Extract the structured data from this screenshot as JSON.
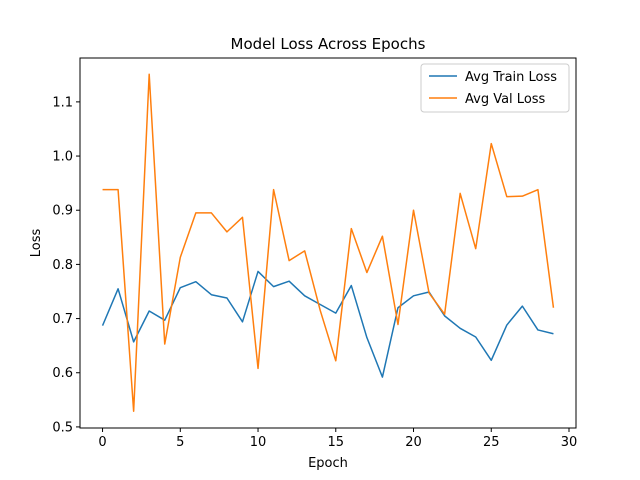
{
  "chart_data": {
    "type": "line",
    "title": "Model Loss Across Epochs",
    "xlabel": "Epoch",
    "ylabel": "Loss",
    "xlim": [
      -1.45,
      30.45
    ],
    "ylim": [
      0.498,
      1.181
    ],
    "xticks": [
      0,
      5,
      10,
      15,
      20,
      25,
      30
    ],
    "yticks": [
      0.5,
      0.6,
      0.7,
      0.8,
      0.9,
      1.0,
      1.1
    ],
    "ytick_labels": [
      "0.5",
      "0.6",
      "0.7",
      "0.8",
      "0.9",
      "1.0",
      "1.1"
    ],
    "grid": false,
    "legend_position": "top-right",
    "x": [
      0,
      1,
      2,
      3,
      4,
      5,
      6,
      7,
      8,
      9,
      10,
      11,
      12,
      13,
      14,
      15,
      16,
      17,
      18,
      19,
      20,
      21,
      22,
      23,
      24,
      25,
      26,
      27,
      28,
      29
    ],
    "series": [
      {
        "name": "Avg Train Loss",
        "color": "#1f77b4",
        "values": [
          0.687,
          0.755,
          0.657,
          0.714,
          0.697,
          0.757,
          0.768,
          0.744,
          0.738,
          0.694,
          0.787,
          0.759,
          0.769,
          0.742,
          0.726,
          0.71,
          0.761,
          0.665,
          0.592,
          0.72,
          0.742,
          0.749,
          0.705,
          0.682,
          0.666,
          0.623,
          0.688,
          0.723,
          0.679,
          0.672
        ]
      },
      {
        "name": "Avg Val Loss",
        "color": "#ff7f0e",
        "values": [
          0.938,
          0.938,
          0.529,
          1.151,
          0.653,
          0.813,
          0.895,
          0.895,
          0.86,
          0.887,
          0.608,
          0.938,
          0.807,
          0.825,
          0.715,
          0.622,
          0.866,
          0.785,
          0.852,
          0.689,
          0.9,
          0.747,
          0.708,
          0.931,
          0.829,
          1.023,
          0.925,
          0.926,
          0.938,
          0.72
        ]
      }
    ]
  }
}
